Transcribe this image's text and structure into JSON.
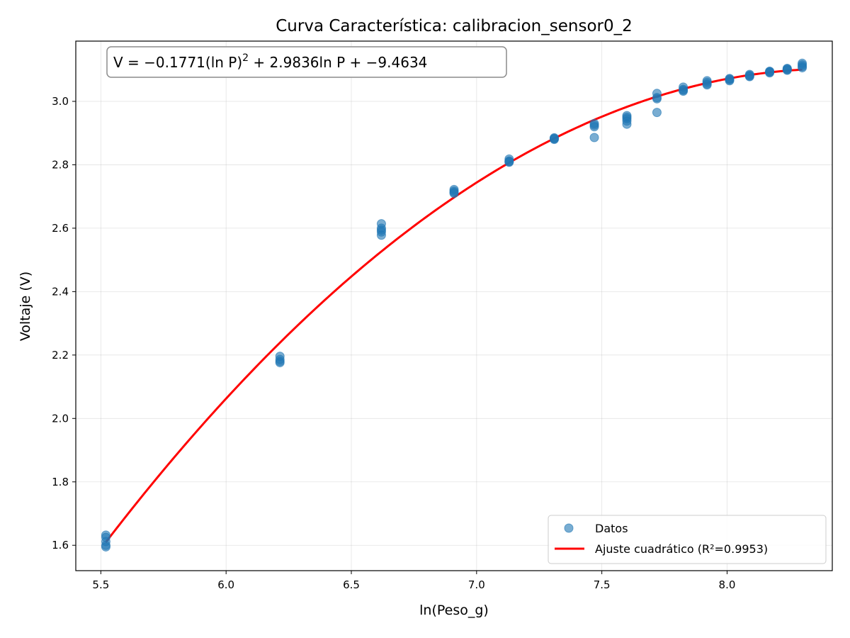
{
  "chart_data": {
    "type": "scatter",
    "title": "Curva Característica: calibracion_sensor0_2",
    "xlabel": "ln(Peso_g)",
    "ylabel": "Voltaje (V)",
    "xlim": [
      5.4,
      8.42
    ],
    "ylim": [
      1.52,
      3.19
    ],
    "xticks": [
      5.5,
      6.0,
      6.5,
      7.0,
      7.5,
      8.0
    ],
    "xtick_labels": [
      "5.5",
      "6.0",
      "6.5",
      "7.0",
      "7.5",
      "8.0"
    ],
    "yticks": [
      1.6,
      1.8,
      2.0,
      2.2,
      2.4,
      2.6,
      2.8,
      3.0
    ],
    "ytick_labels": [
      "1.6",
      "1.8",
      "2.0",
      "2.2",
      "2.4",
      "2.6",
      "2.8",
      "3.0"
    ],
    "grid": true,
    "legend_position": "bottom-right",
    "annotation": {
      "parts": [
        "V = −0.1771(ln P)",
        "2",
        " + 2.9836ln P + −9.4634"
      ],
      "position": "top-left"
    },
    "colors": {
      "points": "#1f77b4",
      "fit": "#ff0000"
    },
    "series": [
      {
        "name": "Datos",
        "kind": "scatter",
        "x": [
          5.52,
          5.52,
          5.52,
          5.52,
          5.52,
          6.215,
          6.215,
          6.215,
          6.215,
          6.62,
          6.62,
          6.62,
          6.62,
          6.62,
          6.91,
          6.91,
          6.91,
          6.91,
          7.13,
          7.13,
          7.13,
          7.13,
          7.31,
          7.31,
          7.31,
          7.31,
          7.47,
          7.47,
          7.47,
          7.47,
          7.6,
          7.6,
          7.6,
          7.6,
          7.6,
          7.72,
          7.72,
          7.72,
          7.72,
          7.825,
          7.825,
          7.825,
          7.825,
          7.92,
          7.92,
          7.92,
          7.92,
          8.01,
          8.01,
          8.01,
          8.01,
          8.09,
          8.09,
          8.09,
          8.09,
          8.17,
          8.17,
          8.17,
          8.17,
          8.24,
          8.24,
          8.24,
          8.24,
          8.3,
          8.3,
          8.3,
          8.3
        ],
        "y": [
          1.632,
          1.625,
          1.612,
          1.6,
          1.595,
          2.196,
          2.186,
          2.18,
          2.176,
          2.614,
          2.6,
          2.594,
          2.588,
          2.578,
          2.722,
          2.717,
          2.713,
          2.71,
          2.818,
          2.812,
          2.808,
          2.81,
          2.885,
          2.882,
          2.88,
          2.883,
          2.93,
          2.925,
          2.92,
          2.886,
          2.955,
          2.95,
          2.945,
          2.938,
          2.928,
          3.025,
          3.012,
          3.008,
          2.965,
          3.045,
          3.038,
          3.032,
          3.035,
          3.065,
          3.06,
          3.055,
          3.052,
          3.072,
          3.068,
          3.065,
          3.07,
          3.085,
          3.082,
          3.078,
          3.08,
          3.095,
          3.092,
          3.09,
          3.094,
          3.104,
          3.1,
          3.098,
          3.102,
          3.12,
          3.115,
          3.11,
          3.106
        ]
      },
      {
        "name": "Ajuste cuadrático (R²=0.9953)",
        "kind": "line",
        "coefficients": {
          "a": -0.1771,
          "b": 2.9836,
          "c": -9.4634
        },
        "x_range": [
          5.52,
          8.3
        ]
      }
    ]
  }
}
